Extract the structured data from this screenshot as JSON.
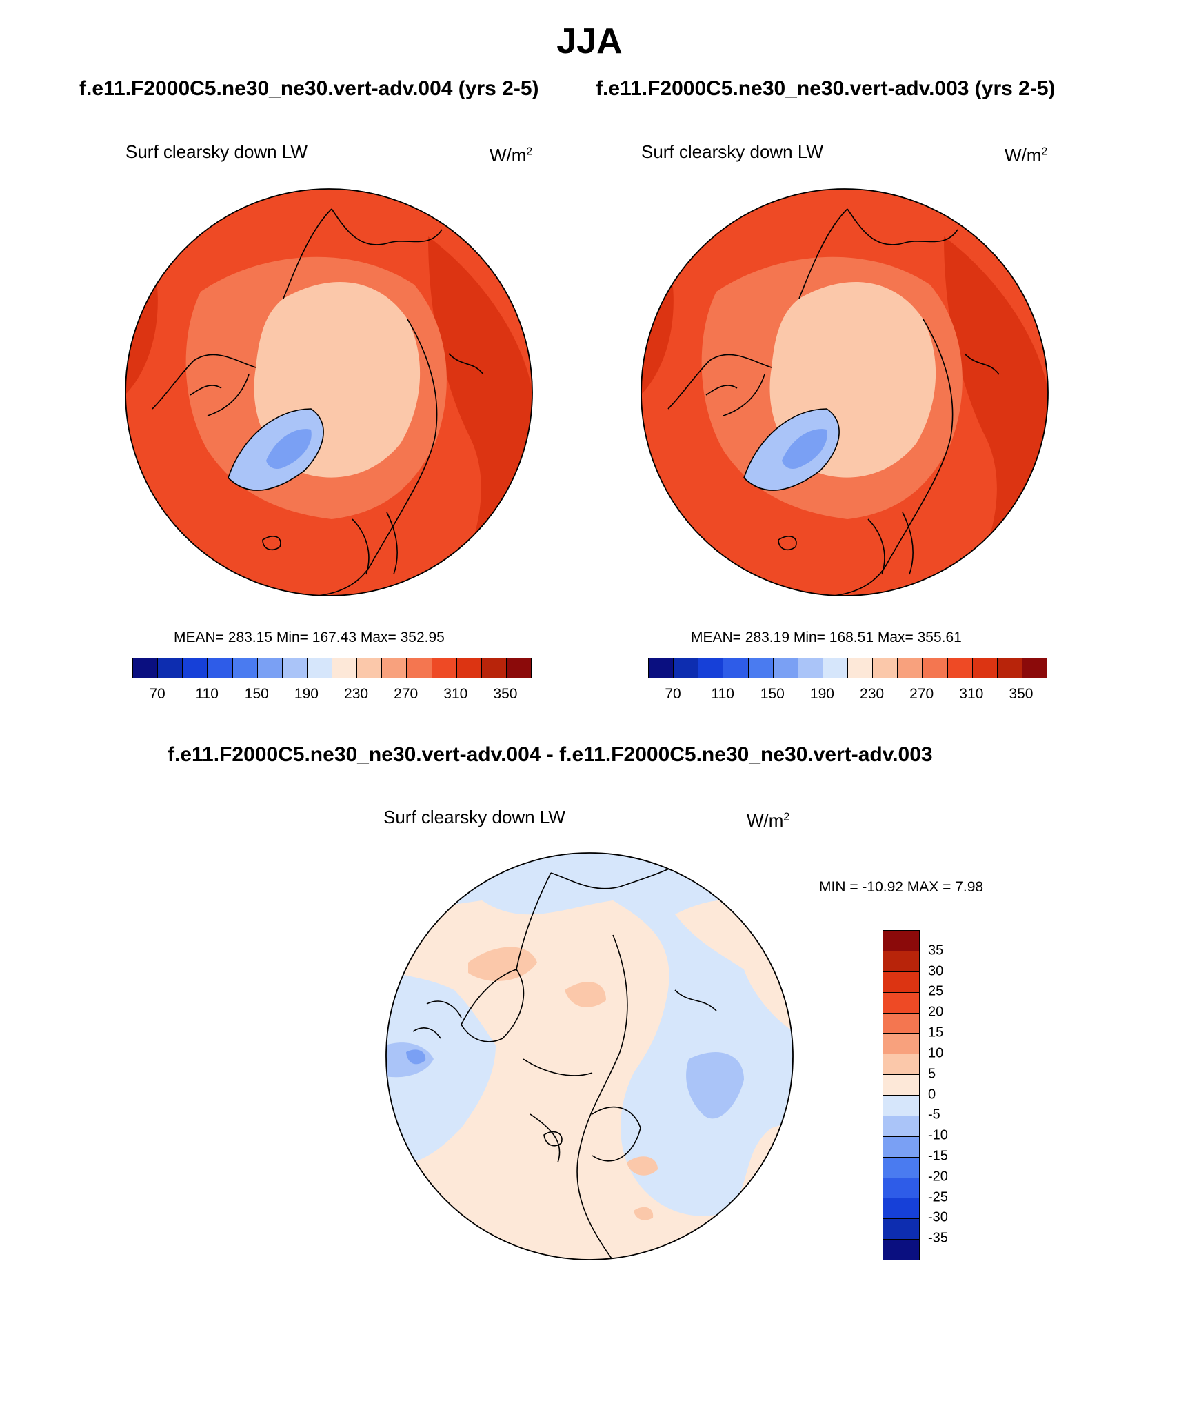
{
  "figure": {
    "title": "JJA",
    "subtitle_left": "f.e11.F2000C5.ne30_ne30.vert-adv.004 (yrs 2-5)",
    "subtitle_right": "f.e11.F2000C5.ne30_ne30.vert-adv.003 (yrs 2-5)",
    "diff_title": "f.e11.F2000C5.ne30_ne30.vert-adv.004 - f.e11.F2000C5.ne30_ne30.vert-adv.003"
  },
  "panel_left": {
    "variable": "Surf clearsky down LW",
    "units_base": "W/m",
    "units_exp": "2",
    "stats": "MEAN= 283.15  Min= 167.43  Max= 352.95"
  },
  "panel_right": {
    "variable": "Surf clearsky down LW",
    "units_base": "W/m",
    "units_exp": "2",
    "stats": "MEAN= 283.19  Min= 168.51  Max= 355.61"
  },
  "panel_diff": {
    "variable": "Surf clearsky down LW",
    "units_base": "W/m",
    "units_exp": "2",
    "stats": "MIN = -10.92 MAX =   7.98"
  },
  "abs_colorbar": {
    "colors": [
      "#0a0f80",
      "#0d2db0",
      "#1640d8",
      "#2e5ce8",
      "#4a7bf0",
      "#7aa0f4",
      "#aac4f8",
      "#d6e6fb",
      "#fde8d8",
      "#fbc8aa",
      "#f8a17d",
      "#f47650",
      "#ee4a25",
      "#dc3412",
      "#b8240a",
      "#8b0a0a"
    ],
    "tick_labels": [
      "70",
      "110",
      "150",
      "190",
      "230",
      "270",
      "310",
      "350"
    ]
  },
  "diff_colorbar": {
    "colors": [
      "#8b0a0a",
      "#b8240a",
      "#dc3412",
      "#ee4a25",
      "#f47650",
      "#f8a17d",
      "#fbc8aa",
      "#fde8d8",
      "#d6e6fb",
      "#aac4f8",
      "#7aa0f4",
      "#4a7bf0",
      "#2e5ce8",
      "#1640d8",
      "#0d2db0",
      "#0a0f80"
    ],
    "tick_labels": [
      "35",
      "30",
      "25",
      "20",
      "15",
      "10",
      "5",
      "0",
      "-5",
      "-10",
      "-15",
      "-20",
      "-25",
      "-30",
      "-35"
    ]
  },
  "map_colors": {
    "coast": "#000000",
    "abs_outer": "#ee4a25",
    "abs_ring1": "#dc3412",
    "abs_mid": "#f47650",
    "abs_arctic": "#fbc8aa",
    "abs_greenland_lo": "#aac4f8",
    "abs_greenland_core": "#7aa0f4",
    "diff_base": "#d6e6fb",
    "diff_pos": "#fde8d8",
    "diff_pos2": "#fbc8aa",
    "diff_neg2": "#aac4f8",
    "diff_neg3": "#7aa0f4"
  }
}
